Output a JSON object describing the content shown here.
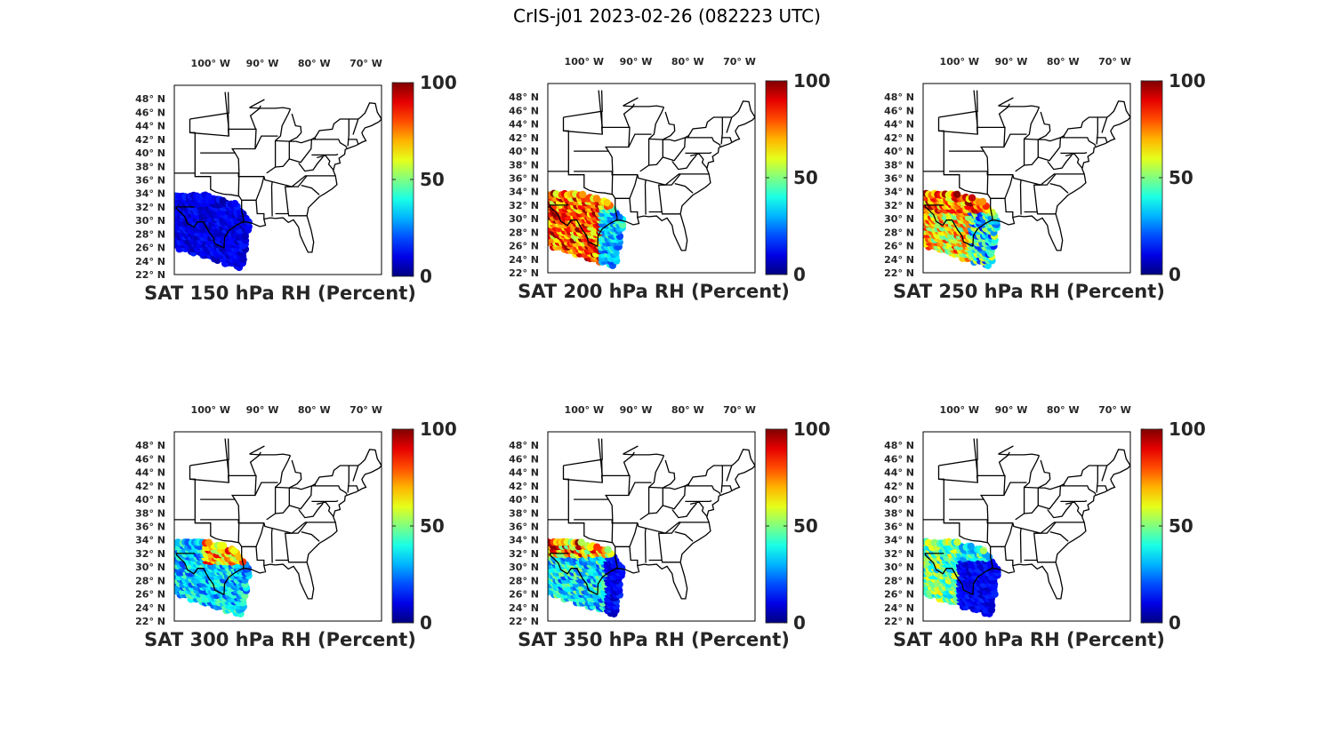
{
  "figure": {
    "title": "CrIS-j01 2023-02-26 (082223 UTC)"
  },
  "axes": {
    "lon_ticks": [
      "100° W",
      "90° W",
      "80° W",
      "70° W"
    ],
    "lat_ticks": [
      "48° N",
      "46° N",
      "44° N",
      "42° N",
      "40° N",
      "38° N",
      "36° N",
      "34° N",
      "32° N",
      "30° N",
      "28° N",
      "26° N",
      "24° N",
      "22° N"
    ],
    "lon_range": [
      -107,
      -67
    ],
    "lat_range": [
      22,
      50
    ]
  },
  "colorbar": {
    "colormap": "jet",
    "ticks": [
      "0",
      "50",
      "100"
    ],
    "range": [
      0,
      100
    ]
  },
  "panels": [
    {
      "title": "SAT 150 hPa RH (Percent)",
      "pattern": "uniform-low"
    },
    {
      "title": "SAT 200 hPa RH (Percent)",
      "pattern": "moist-west-dry-east"
    },
    {
      "title": "SAT 250 hPa RH (Percent)",
      "pattern": "moist-band-north"
    },
    {
      "title": "SAT 300 hPa RH (Percent)",
      "pattern": "moderate-band"
    },
    {
      "title": "SAT 350 hPa RH (Percent)",
      "pattern": "moist-north-dry-south"
    },
    {
      "title": "SAT 400 hPa RH (Percent)",
      "pattern": "dry-south-moderate-west"
    }
  ]
}
